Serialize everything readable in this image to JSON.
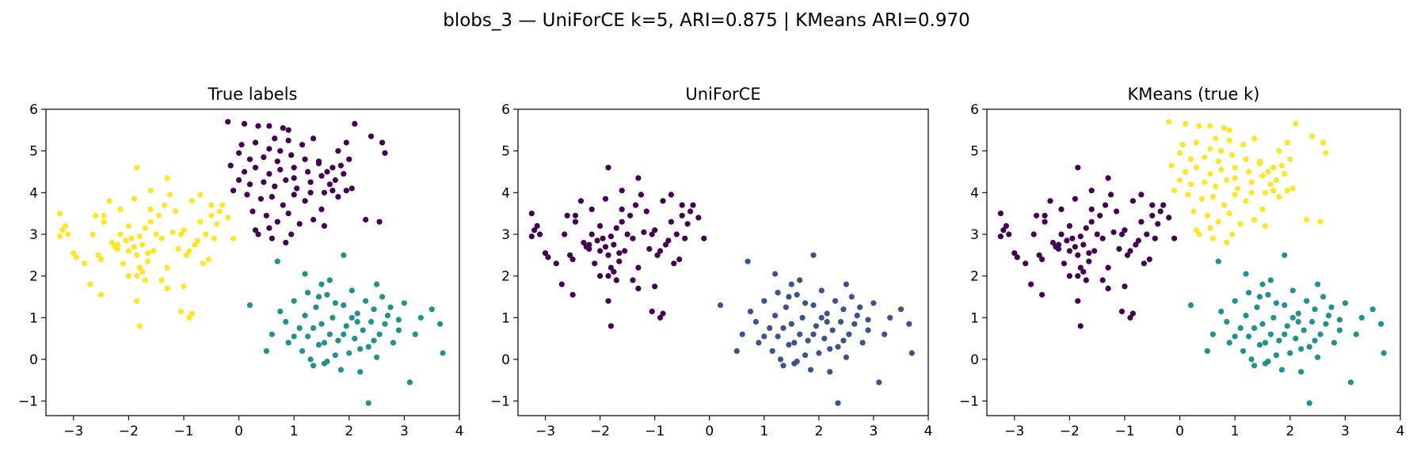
{
  "figure_title": "blobs_3 — UniForCE k=5, ARI=0.875 | KMeans ARI=0.970",
  "colors": {
    "c0": "#440154",
    "c1": "#3b528b",
    "c2": "#21918c",
    "c3": "#5ec962",
    "c4": "#fde725"
  },
  "chart_data": [
    {
      "type": "scatter",
      "title": "True labels",
      "xlim": [
        -3.5,
        4.0
      ],
      "ylim": [
        -1.35,
        6.0
      ],
      "xticks": [
        -3,
        -2,
        -1,
        0,
        1,
        2,
        3,
        4
      ],
      "yticks": [
        -1,
        0,
        1,
        2,
        3,
        4,
        5,
        6
      ],
      "xlabel": "",
      "ylabel": "",
      "grid": false,
      "clusters": [
        {
          "color": "#440154",
          "group": "top"
        },
        {
          "color": "#21918c",
          "group": "bottom"
        },
        {
          "color": "#fde725",
          "group": "left"
        }
      ]
    },
    {
      "type": "scatter",
      "title": "UniForCE",
      "xlim": [
        -3.5,
        4.0
      ],
      "ylim": [
        -1.35,
        6.0
      ],
      "xticks": [
        -3,
        -2,
        -1,
        0,
        1,
        2,
        3,
        4
      ],
      "yticks": [
        -1,
        0,
        1,
        2,
        3,
        4,
        5,
        6
      ],
      "xlabel": "",
      "ylabel": "",
      "grid": false,
      "clusters": [
        {
          "color": "#440154",
          "group": "left"
        },
        {
          "color": "#3b528b",
          "group": "bottom"
        },
        {
          "color": "#21918c",
          "group": "top-main"
        },
        {
          "color": "#5ec962",
          "group": "top-sub-a"
        },
        {
          "color": "#fde725",
          "group": "top-sub-b"
        }
      ]
    },
    {
      "type": "scatter",
      "title": "KMeans (true k)",
      "xlim": [
        -3.5,
        4.0
      ],
      "ylim": [
        -1.35,
        6.0
      ],
      "xticks": [
        -3,
        -2,
        -1,
        0,
        1,
        2,
        3,
        4
      ],
      "yticks": [
        -1,
        0,
        1,
        2,
        3,
        4,
        5,
        6
      ],
      "xlabel": "",
      "ylabel": "",
      "grid": false,
      "clusters": [
        {
          "color": "#440154",
          "group": "left"
        },
        {
          "color": "#21918c",
          "group": "bottom"
        },
        {
          "color": "#fde725",
          "group": "top"
        }
      ]
    }
  ],
  "points": {
    "left": [
      [
        -3.25,
        3.5
      ],
      [
        -3.2,
        3.1
      ],
      [
        -3.15,
        3.2
      ],
      [
        -3.25,
        2.95
      ],
      [
        -3.1,
        3.0
      ],
      [
        -3.0,
        2.55
      ],
      [
        -2.95,
        2.45
      ],
      [
        -2.8,
        2.3
      ],
      [
        -2.7,
        1.8
      ],
      [
        -2.5,
        1.55
      ],
      [
        -2.65,
        3.0
      ],
      [
        -2.55,
        2.5
      ],
      [
        -2.5,
        2.4
      ],
      [
        -2.45,
        3.3
      ],
      [
        -2.45,
        3.45
      ],
      [
        -2.35,
        3.8
      ],
      [
        -2.3,
        2.8
      ],
      [
        -2.25,
        2.7
      ],
      [
        -2.2,
        2.65
      ],
      [
        -2.2,
        2.75
      ],
      [
        -2.15,
        3.6
      ],
      [
        -2.15,
        3.0
      ],
      [
        -2.1,
        2.3
      ],
      [
        -2.05,
        2.85
      ],
      [
        -2.0,
        2.6
      ],
      [
        -2.0,
        3.2
      ],
      [
        -1.95,
        2.9
      ],
      [
        -1.9,
        3.85
      ],
      [
        -1.9,
        2.7
      ],
      [
        -1.85,
        2.5
      ],
      [
        -1.85,
        2.0
      ],
      [
        -1.8,
        2.2
      ],
      [
        -1.8,
        2.95
      ],
      [
        -1.75,
        2.75
      ],
      [
        -1.75,
        2.1
      ],
      [
        -1.7,
        1.9
      ],
      [
        -1.7,
        3.15
      ],
      [
        -1.65,
        2.55
      ],
      [
        -1.6,
        3.6
      ],
      [
        -1.6,
        3.3
      ],
      [
        -1.55,
        2.6
      ],
      [
        -1.5,
        3.0
      ],
      [
        -1.45,
        3.45
      ],
      [
        -1.4,
        2.9
      ],
      [
        -1.35,
        3.7
      ],
      [
        -1.3,
        2.2
      ],
      [
        -1.3,
        4.35
      ],
      [
        -1.25,
        3.95
      ],
      [
        -1.2,
        3.05
      ],
      [
        -1.15,
        3.55
      ],
      [
        -1.1,
        2.65
      ],
      [
        -1.05,
        3.0
      ],
      [
        -1.0,
        3.1
      ],
      [
        -0.95,
        2.5
      ],
      [
        -0.9,
        2.6
      ],
      [
        -0.85,
        3.8
      ],
      [
        -0.8,
        2.75
      ],
      [
        -0.75,
        2.85
      ],
      [
        -0.7,
        3.3
      ],
      [
        -0.65,
        2.3
      ],
      [
        -0.6,
        3.0
      ],
      [
        -0.55,
        2.4
      ],
      [
        -0.5,
        3.45
      ],
      [
        -0.45,
        2.9
      ],
      [
        -0.4,
        3.25
      ],
      [
        -0.35,
        3.55
      ],
      [
        -0.3,
        3.7
      ],
      [
        -0.2,
        3.4
      ],
      [
        -0.1,
        2.9
      ],
      [
        -0.5,
        3.7
      ],
      [
        -1.85,
        4.6
      ],
      [
        -1.3,
        1.7
      ],
      [
        -1.85,
        1.4
      ],
      [
        -1.8,
        0.8
      ],
      [
        -0.9,
        1.0
      ],
      [
        -0.85,
        1.1
      ],
      [
        -1.05,
        1.15
      ],
      [
        -2.0,
        2.0
      ],
      [
        -1.65,
        2.35
      ],
      [
        -1.4,
        1.9
      ],
      [
        -1.0,
        1.75
      ],
      [
        -0.7,
        3.95
      ],
      [
        -1.6,
        4.05
      ],
      [
        -2.6,
        3.45
      ]
    ],
    "top": [
      [
        -0.2,
        5.7
      ],
      [
        0.1,
        5.65
      ],
      [
        0.35,
        5.6
      ],
      [
        0.55,
        5.6
      ],
      [
        0.9,
        5.5
      ],
      [
        0.8,
        5.55
      ],
      [
        0.05,
        5.15
      ],
      [
        0.3,
        5.2
      ],
      [
        0.55,
        5.05
      ],
      [
        0.65,
        5.3
      ],
      [
        0.9,
        5.25
      ],
      [
        1.15,
        5.15
      ],
      [
        1.35,
        5.3
      ],
      [
        0.0,
        4.95
      ],
      [
        0.2,
        4.8
      ],
      [
        0.45,
        4.85
      ],
      [
        0.7,
        4.75
      ],
      [
        0.95,
        4.9
      ],
      [
        1.2,
        4.8
      ],
      [
        1.45,
        4.75
      ],
      [
        -0.15,
        4.65
      ],
      [
        0.1,
        4.5
      ],
      [
        0.3,
        4.6
      ],
      [
        0.55,
        4.45
      ],
      [
        0.75,
        4.55
      ],
      [
        1.0,
        4.6
      ],
      [
        1.25,
        4.5
      ],
      [
        1.5,
        4.4
      ],
      [
        0.0,
        4.3
      ],
      [
        0.2,
        4.2
      ],
      [
        0.45,
        4.25
      ],
      [
        0.65,
        4.15
      ],
      [
        0.85,
        4.3
      ],
      [
        1.05,
        4.1
      ],
      [
        1.3,
        4.25
      ],
      [
        -0.1,
        4.05
      ],
      [
        0.15,
        3.95
      ],
      [
        0.4,
        3.85
      ],
      [
        0.6,
        3.9
      ],
      [
        0.8,
        3.7
      ],
      [
        1.0,
        3.95
      ],
      [
        1.2,
        3.8
      ],
      [
        0.25,
        3.55
      ],
      [
        0.5,
        3.45
      ],
      [
        0.7,
        3.3
      ],
      [
        0.9,
        3.5
      ],
      [
        1.1,
        3.25
      ],
      [
        0.3,
        3.1
      ],
      [
        0.55,
        3.15
      ],
      [
        0.95,
        3.0
      ],
      [
        1.35,
        3.35
      ],
      [
        1.55,
        3.2
      ],
      [
        0.6,
        2.9
      ],
      [
        0.85,
        2.8
      ],
      [
        0.35,
        3.0
      ],
      [
        1.5,
        3.6
      ],
      [
        1.7,
        4.6
      ],
      [
        1.95,
        5.2
      ],
      [
        2.1,
        5.65
      ],
      [
        2.4,
        5.35
      ],
      [
        2.6,
        5.2
      ],
      [
        2.65,
        4.95
      ],
      [
        1.8,
        5.0
      ],
      [
        2.0,
        4.8
      ],
      [
        2.55,
        3.3
      ],
      [
        2.3,
        3.35
      ],
      [
        1.6,
        4.5
      ],
      [
        1.75,
        4.3
      ],
      [
        1.9,
        4.45
      ],
      [
        1.65,
        4.2
      ],
      [
        1.85,
        4.65
      ],
      [
        2.05,
        4.1
      ],
      [
        1.45,
        4.7
      ],
      [
        1.55,
        4.0
      ],
      [
        1.8,
        3.9
      ],
      [
        1.3,
        4.0
      ],
      [
        1.0,
        4.35
      ],
      [
        0.75,
        5.0
      ],
      [
        1.7,
        4.05
      ],
      [
        1.95,
        4.05
      ]
    ],
    "bottom": [
      [
        0.2,
        1.3
      ],
      [
        0.6,
        0.6
      ],
      [
        0.75,
        1.15
      ],
      [
        0.85,
        0.9
      ],
      [
        0.9,
        0.4
      ],
      [
        1.0,
        1.4
      ],
      [
        1.1,
        0.75
      ],
      [
        1.15,
        0.2
      ],
      [
        1.2,
        1.05
      ],
      [
        1.25,
        0.55
      ],
      [
        1.3,
        0.0
      ],
      [
        1.35,
        -0.15
      ],
      [
        1.4,
        1.25
      ],
      [
        1.45,
        0.35
      ],
      [
        1.5,
        0.85
      ],
      [
        1.55,
        -0.1
      ],
      [
        1.6,
        1.55
      ],
      [
        1.65,
        0.6
      ],
      [
        1.7,
        1.0
      ],
      [
        1.75,
        0.1
      ],
      [
        1.8,
        0.45
      ],
      [
        1.85,
        -0.25
      ],
      [
        1.9,
        1.3
      ],
      [
        1.95,
        0.8
      ],
      [
        2.0,
        0.15
      ],
      [
        2.05,
        1.65
      ],
      [
        2.1,
        0.5
      ],
      [
        2.15,
        1.1
      ],
      [
        2.2,
        -0.3
      ],
      [
        2.25,
        0.7
      ],
      [
        2.3,
        1.4
      ],
      [
        2.35,
        0.3
      ],
      [
        2.4,
        0.9
      ],
      [
        2.45,
        1.2
      ],
      [
        2.5,
        0.05
      ],
      [
        2.55,
        0.6
      ],
      [
        2.6,
        1.5
      ],
      [
        2.65,
        0.85
      ],
      [
        2.7,
        1.05
      ],
      [
        2.8,
        0.4
      ],
      [
        2.9,
        0.7
      ],
      [
        3.0,
        1.35
      ],
      [
        3.1,
        -0.55
      ],
      [
        3.3,
        1.0
      ],
      [
        3.5,
        1.2
      ],
      [
        3.65,
        0.85
      ],
      [
        3.7,
        0.15
      ],
      [
        2.35,
        -1.05
      ],
      [
        1.9,
        2.5
      ],
      [
        1.2,
        2.05
      ],
      [
        1.65,
        1.9
      ],
      [
        1.5,
        1.8
      ],
      [
        0.5,
        0.2
      ],
      [
        0.7,
        2.35
      ],
      [
        1.25,
        1.6
      ],
      [
        1.75,
        1.35
      ],
      [
        2.15,
        0.9
      ],
      [
        2.45,
        0.45
      ],
      [
        1.9,
        0.6
      ],
      [
        1.55,
        0.4
      ],
      [
        1.35,
        0.75
      ],
      [
        2.05,
        1.0
      ],
      [
        2.5,
        1.8
      ],
      [
        2.75,
        1.25
      ],
      [
        1.45,
        1.5
      ],
      [
        2.2,
        0.25
      ],
      [
        1.6,
        -0.05
      ],
      [
        1.0,
        0.55
      ],
      [
        2.9,
        0.95
      ],
      [
        3.2,
        0.6
      ]
    ]
  }
}
